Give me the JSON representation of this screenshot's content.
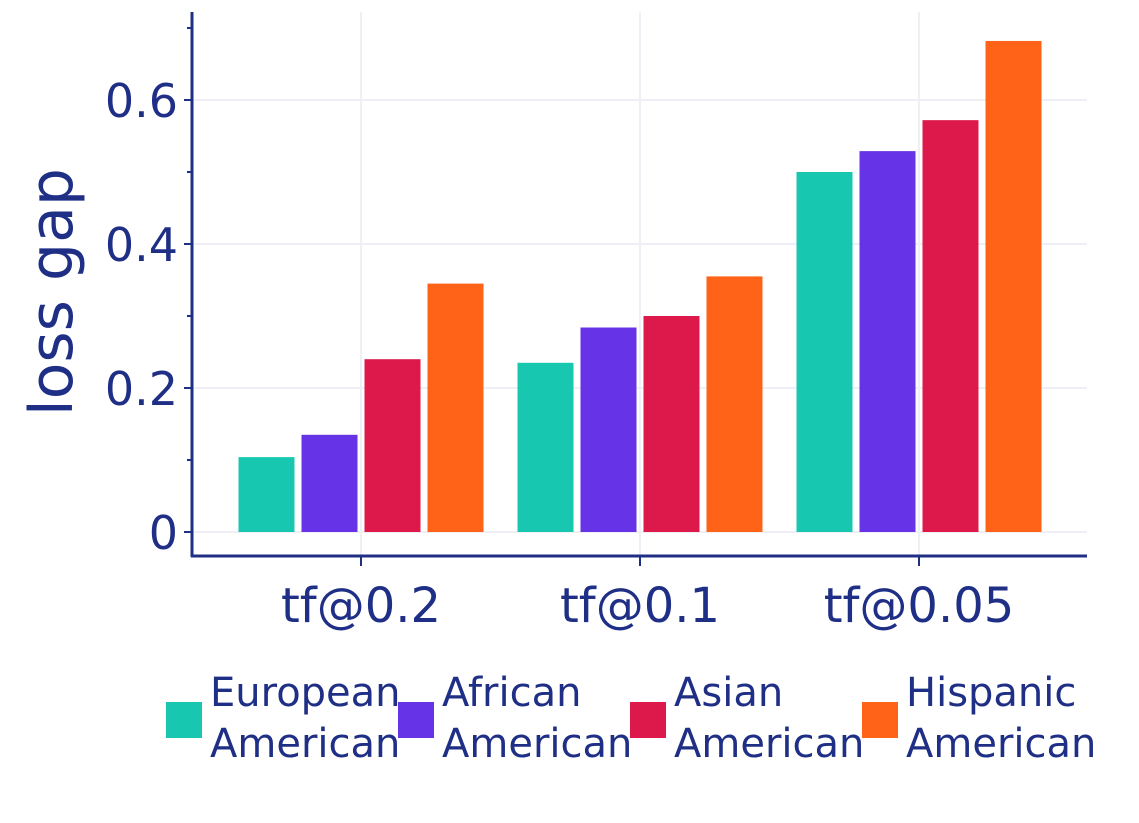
{
  "chart_data": {
    "type": "bar",
    "title": "",
    "xlabel": "",
    "ylabel": "loss gap",
    "ylim": [
      0,
      0.72
    ],
    "yticks": [
      0,
      0.2,
      0.4,
      0.6
    ],
    "ytick_labels": [
      "0",
      "0.2",
      "0.4",
      "0.6"
    ],
    "grid": true,
    "legend_position": "bottom",
    "categories": [
      "tf@0.2",
      "tf@0.1",
      "tf@0.05"
    ],
    "series": [
      {
        "name": "European American",
        "label_lines": [
          "European",
          "American"
        ],
        "color": "#18c7b0",
        "values": [
          0.104,
          0.235,
          0.5
        ]
      },
      {
        "name": "African American",
        "label_lines": [
          "African",
          "American"
        ],
        "color": "#6633e6",
        "values": [
          0.135,
          0.284,
          0.529
        ]
      },
      {
        "name": "Asian American",
        "label_lines": [
          "Asian",
          "American"
        ],
        "color": "#dd184a",
        "values": [
          0.24,
          0.3,
          0.572
        ]
      },
      {
        "name": "Hispanic American",
        "label_lines": [
          "Hispanic",
          "American"
        ],
        "color": "#ff6318",
        "values": [
          0.345,
          0.355,
          0.682
        ]
      }
    ]
  }
}
